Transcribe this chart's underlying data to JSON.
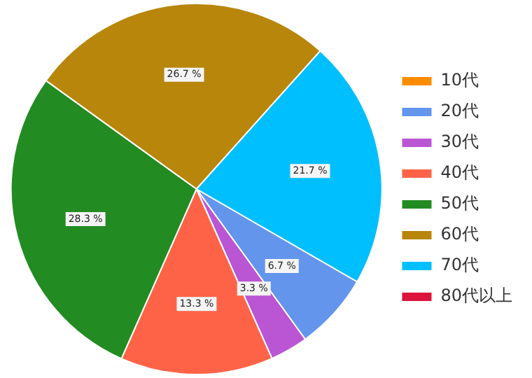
{
  "chart_data": {
    "type": "pie",
    "categories": [
      "10代",
      "20代",
      "30代",
      "40代",
      "50代",
      "60代",
      "70代",
      "80代以上"
    ],
    "values": [
      0,
      6.7,
      3.3,
      13.3,
      28.3,
      26.7,
      21.7,
      0
    ],
    "colors": [
      "#ff8c00",
      "#6495ed",
      "#ba55d3",
      "#ff6347",
      "#228b22",
      "#b8860b",
      "#00bfff",
      "#dc143c"
    ],
    "value_labels": [
      null,
      "6.7 %",
      "3.3 %",
      "13.3 %",
      "28.3 %",
      "26.7 %",
      "21.7 %",
      null
    ],
    "legend": "right"
  }
}
